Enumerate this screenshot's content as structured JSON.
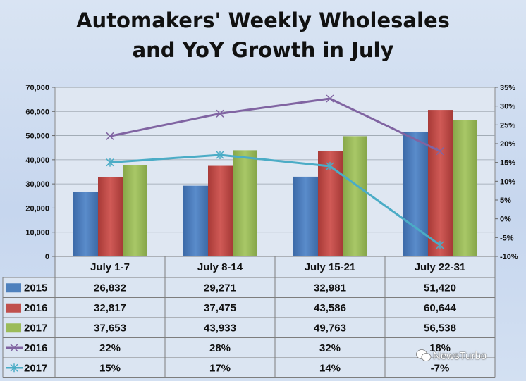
{
  "chart_data": {
    "type": "bar",
    "title_lines": [
      "Automakers' Weekly Wholesales",
      "and YoY Growth in July"
    ],
    "categories": [
      "July 1-7",
      "July 8-14",
      "July 15-21",
      "July 22-31"
    ],
    "bar_series": [
      {
        "name": "2015",
        "values": [
          26832,
          29271,
          32981,
          51420
        ],
        "color": "#4f81bd"
      },
      {
        "name": "2016",
        "values": [
          32817,
          37475,
          43586,
          60644
        ],
        "color": "#c0504d"
      },
      {
        "name": "2017",
        "values": [
          37653,
          43933,
          49763,
          56538
        ],
        "color": "#9bbb59"
      }
    ],
    "line_series": [
      {
        "name": "2016",
        "values": [
          22,
          28,
          32,
          18
        ],
        "color": "#8064a2",
        "marker": "x"
      },
      {
        "name": "2017",
        "values": [
          15,
          17,
          14,
          -7
        ],
        "color": "#4bacc6",
        "marker": "star"
      }
    ],
    "y_left": {
      "ylim": [
        0,
        70000
      ],
      "ticks": [
        "0",
        "10,000",
        "20,000",
        "30,000",
        "40,000",
        "50,000",
        "60,000",
        "70,000"
      ]
    },
    "y_right": {
      "ylim": [
        -10,
        35
      ],
      "ticks": [
        "-10%",
        "-5%",
        "0%",
        "5%",
        "10%",
        "15%",
        "20%",
        "25%",
        "30%",
        "35%"
      ]
    },
    "data_table": {
      "rows": [
        {
          "label": "2015",
          "values": [
            "26,832",
            "29,271",
            "32,981",
            "51,420"
          ]
        },
        {
          "label": "2016",
          "values": [
            "32,817",
            "37,475",
            "43,586",
            "60,644"
          ]
        },
        {
          "label": "2017",
          "values": [
            "37,653",
            "43,933",
            "49,763",
            "56,538"
          ]
        },
        {
          "label": "2016",
          "values": [
            "22%",
            "28%",
            "32%",
            "18%"
          ]
        },
        {
          "label": "2017",
          "values": [
            "15%",
            "17%",
            "14%",
            "-7%"
          ]
        }
      ]
    },
    "grid": true,
    "legend": "data table"
  },
  "watermark": "NewsTurbo"
}
